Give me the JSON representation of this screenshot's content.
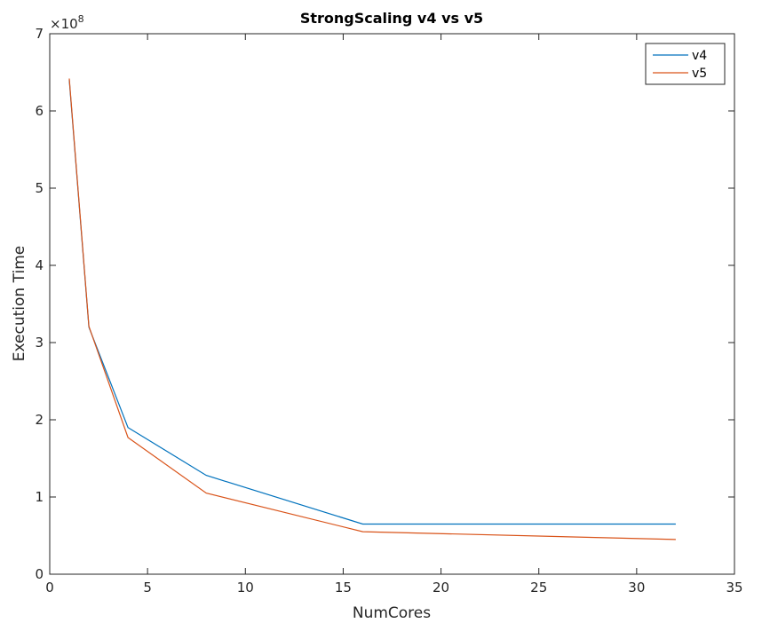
{
  "chart_data": {
    "type": "line",
    "title": "StrongScaling v4 vs v5",
    "xlabel": "NumCores",
    "ylabel": "Execution Time",
    "y_exponent_label": "×10",
    "y_exponent_power": "8",
    "xlim": [
      0,
      35
    ],
    "ylim": [
      0,
      7
    ],
    "y_scale_factor": 100000000,
    "x_ticks": [
      0,
      5,
      10,
      15,
      20,
      25,
      30,
      35
    ],
    "y_ticks": [
      0,
      1,
      2,
      3,
      4,
      5,
      6,
      7
    ],
    "grid": false,
    "legend_position": "top-right",
    "x": [
      1,
      2,
      4,
      8,
      16,
      32
    ],
    "series": [
      {
        "name": "v4",
        "color": "#0072BD",
        "values": [
          640000000,
          320000000,
          190000000,
          128000000,
          65000000,
          65000000
        ]
      },
      {
        "name": "v5",
        "color": "#D95319",
        "values": [
          642000000,
          321000000,
          177000000,
          105000000,
          55000000,
          45000000
        ]
      }
    ]
  }
}
